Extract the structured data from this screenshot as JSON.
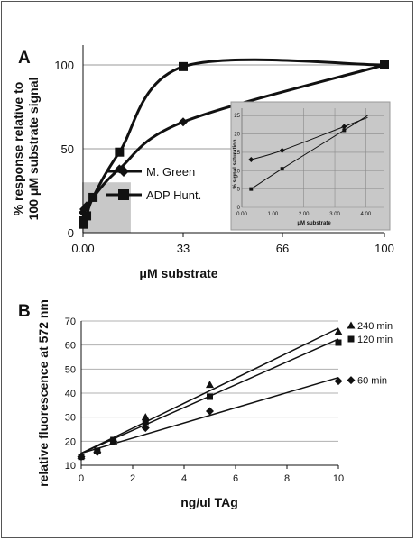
{
  "panels": {
    "a_letter": "A",
    "b_letter": "B"
  },
  "chart_data": [
    {
      "type": "line",
      "panel": "A",
      "xlabel": "μM substrate",
      "ylabel_lines": [
        "% response relative to",
        "100 μM substrate signal"
      ],
      "x_ticks": [
        "0.00",
        "33",
        "66",
        "100"
      ],
      "y_ticks": [
        "0",
        "50",
        "100"
      ],
      "xlim": [
        0,
        100
      ],
      "ylim": [
        0,
        110
      ],
      "grid": true,
      "legend_position": "center-left",
      "highlight_region": {
        "x": [
          0,
          8
        ],
        "y": [
          0,
          30
        ]
      },
      "series": [
        {
          "name": "M. Green",
          "marker": "diamond",
          "x": [
            0,
            0.3,
            1.2,
            3.3,
            12,
            33,
            100
          ],
          "y": [
            12,
            14,
            16,
            21,
            38,
            66,
            100
          ]
        },
        {
          "name": "ADP Hunt.",
          "marker": "square",
          "x": [
            0,
            0.3,
            1.2,
            3.3,
            12,
            33,
            100
          ],
          "y": [
            5,
            7,
            10,
            21,
            48,
            99,
            100
          ]
        }
      ],
      "inset": {
        "xlabel": "μM substrate",
        "ylabel": "% signal saturation",
        "x_ticks": [
          "0.00",
          "1.00",
          "2.00",
          "3.00",
          "4.00"
        ],
        "y_ticks": [
          "0",
          "5",
          "10",
          "15",
          "20",
          "25"
        ],
        "xlim": [
          0,
          4.6
        ],
        "ylim": [
          0,
          27
        ],
        "series": [
          {
            "name": "M. Green",
            "marker": "diamond",
            "x": [
              0.3,
              1.3,
              3.3
            ],
            "y": [
              13,
              15.5,
              22
            ]
          },
          {
            "name": "ADP Hunt.",
            "marker": "square",
            "x": [
              0.3,
              1.3,
              3.3
            ],
            "y": [
              5,
              10.5,
              21
            ]
          }
        ]
      }
    },
    {
      "type": "scatter",
      "panel": "B",
      "xlabel": "ng/ul TAg",
      "ylabel": "relative fluorescence at 572 nm",
      "x_ticks": [
        "0",
        "2",
        "4",
        "6",
        "8",
        "10"
      ],
      "y_ticks": [
        "10",
        "20",
        "30",
        "40",
        "50",
        "60",
        "70"
      ],
      "xlim": [
        0,
        10
      ],
      "ylim": [
        10,
        70
      ],
      "grid": true,
      "series": [
        {
          "name": "240 min",
          "marker": "triangle",
          "x": [
            0,
            0.625,
            1.25,
            2.5,
            5,
            10
          ],
          "y": [
            14,
            16,
            20,
            30,
            43.5,
            65.5
          ],
          "fit": [
            15,
            67
          ]
        },
        {
          "name": "120 min",
          "marker": "square",
          "x": [
            0,
            0.625,
            1.25,
            2.5,
            5,
            10
          ],
          "y": [
            13.5,
            16,
            20.5,
            28,
            38.5,
            61
          ],
          "fit": [
            15,
            62.5
          ]
        },
        {
          "name": "60 min",
          "marker": "diamond",
          "x": [
            0,
            0.625,
            1.25,
            2.5,
            5,
            10
          ],
          "y": [
            13.5,
            15.5,
            20,
            25.5,
            32.5,
            45
          ],
          "fit": [
            15,
            46.5
          ]
        }
      ]
    }
  ]
}
